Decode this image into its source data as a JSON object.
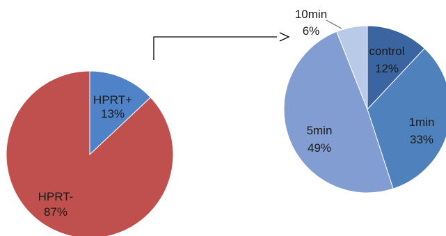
{
  "chart_data": [
    {
      "type": "pie",
      "slices": [
        {
          "label": "HPRT+",
          "percent_label": "13%",
          "value": 13,
          "color": "#5082c8"
        },
        {
          "label": "HPRT-",
          "percent_label": "87%",
          "value": 87,
          "color": "#c0504d"
        }
      ]
    },
    {
      "type": "pie",
      "slices": [
        {
          "label": "control",
          "percent_label": "12%",
          "value": 12,
          "color": "#3a65a0"
        },
        {
          "label": "1min",
          "percent_label": "33%",
          "value": 33,
          "color": "#4f81bd"
        },
        {
          "label": "5min",
          "percent_label": "49%",
          "value": 49,
          "color": "#819dd2"
        },
        {
          "label": "10min",
          "percent_label": "6%",
          "value": 6,
          "color": "#b9cae8"
        }
      ]
    }
  ]
}
